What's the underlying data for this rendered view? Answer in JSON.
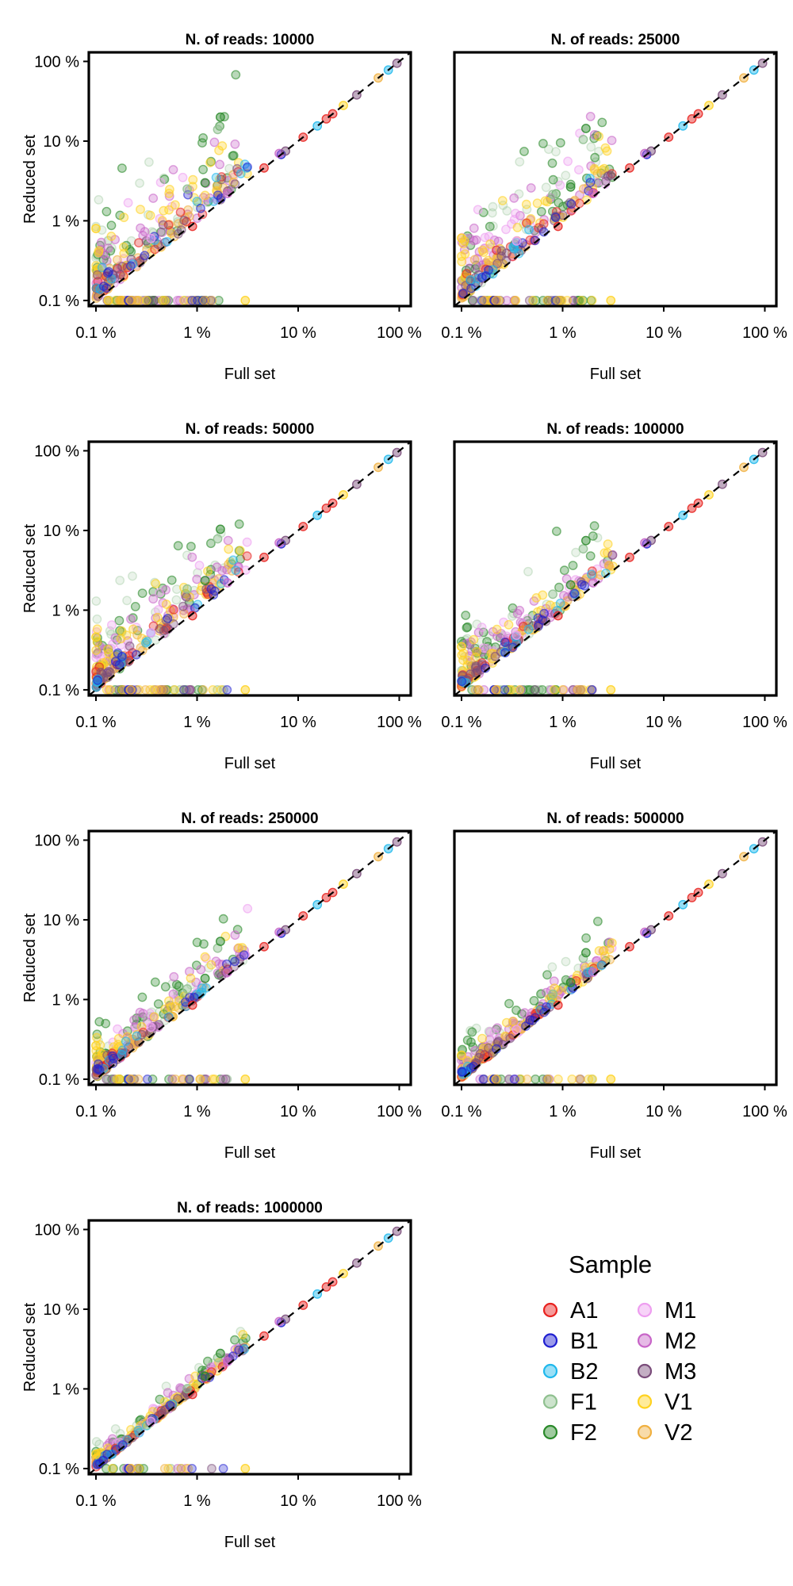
{
  "figure": {
    "legend": {
      "title": "Sample"
    }
  },
  "chart_data": [
    {
      "type": "scatter",
      "title": "N. of reads: 10000",
      "xlabel": "Full set",
      "ylabel": "Reduced set",
      "xscale": "log",
      "yscale": "log",
      "xlim": [
        0.1,
        100
      ],
      "ylim": [
        0.1,
        100
      ],
      "xticks": [
        "0.1 %",
        "1 %",
        "10 %",
        "100 %"
      ],
      "yticks": [
        "0.1 %",
        "1 %",
        "10 %",
        "100 %"
      ],
      "show_ylabel": true,
      "reference_line": "y = x (dashed)"
    },
    {
      "type": "scatter",
      "title": "N. of reads: 25000",
      "xlabel": "Full set",
      "ylabel": "",
      "xscale": "log",
      "yscale": "log",
      "xlim": [
        0.1,
        100
      ],
      "ylim": [
        0.1,
        100
      ],
      "xticks": [
        "0.1 %",
        "1 %",
        "10 %",
        "100 %"
      ],
      "yticks": [],
      "show_ylabel": false,
      "reference_line": "y = x (dashed)"
    },
    {
      "type": "scatter",
      "title": "N. of reads: 50000",
      "xlabel": "Full set",
      "ylabel": "Reduced set",
      "xscale": "log",
      "yscale": "log",
      "xlim": [
        0.1,
        100
      ],
      "ylim": [
        0.1,
        100
      ],
      "xticks": [
        "0.1 %",
        "1 %",
        "10 %",
        "100 %"
      ],
      "yticks": [
        "0.1 %",
        "1 %",
        "10 %",
        "100 %"
      ],
      "show_ylabel": true,
      "reference_line": "y = x (dashed)"
    },
    {
      "type": "scatter",
      "title": "N. of reads: 100000",
      "xlabel": "Full set",
      "ylabel": "",
      "xscale": "log",
      "yscale": "log",
      "xlim": [
        0.1,
        100
      ],
      "ylim": [
        0.1,
        100
      ],
      "xticks": [
        "0.1 %",
        "1 %",
        "10 %",
        "100 %"
      ],
      "yticks": [],
      "show_ylabel": false,
      "reference_line": "y = x (dashed)"
    },
    {
      "type": "scatter",
      "title": "N. of reads: 250000",
      "xlabel": "Full set",
      "ylabel": "Reduced set",
      "xscale": "log",
      "yscale": "log",
      "xlim": [
        0.1,
        100
      ],
      "ylim": [
        0.1,
        100
      ],
      "xticks": [
        "0.1 %",
        "1 %",
        "10 %",
        "100 %"
      ],
      "yticks": [
        "0.1 %",
        "1 %",
        "10 %",
        "100 %"
      ],
      "show_ylabel": true,
      "reference_line": "y = x (dashed)"
    },
    {
      "type": "scatter",
      "title": "N. of reads: 500000",
      "xlabel": "Full set",
      "ylabel": "",
      "xscale": "log",
      "yscale": "log",
      "xlim": [
        0.1,
        100
      ],
      "ylim": [
        0.1,
        100
      ],
      "xticks": [
        "0.1 %",
        "1 %",
        "10 %",
        "100 %"
      ],
      "yticks": [],
      "show_ylabel": false,
      "reference_line": "y = x (dashed)"
    },
    {
      "type": "scatter",
      "title": "N. of reads: 1000000",
      "xlabel": "Full set",
      "ylabel": "Reduced set",
      "xscale": "log",
      "yscale": "log",
      "xlim": [
        0.1,
        100
      ],
      "ylim": [
        0.1,
        100
      ],
      "xticks": [
        "0.1 %",
        "1 %",
        "10 %",
        "100 %"
      ],
      "yticks": [
        "0.1 %",
        "1 %",
        "10 %",
        "100 %"
      ],
      "show_ylabel": true,
      "reference_line": "y = x (dashed)"
    }
  ],
  "series": [
    {
      "name": "A1",
      "color": "#e8221f",
      "highlights": [
        {
          "full": 4.6,
          "reduced": 4.6
        },
        {
          "full": 11.2,
          "reduced": 11.2
        },
        {
          "full": 19.0,
          "reduced": 19.0
        },
        {
          "full": 22.0,
          "reduced": 22.0
        },
        {
          "full": 0.9,
          "reduced": 0.85
        }
      ]
    },
    {
      "name": "B1",
      "color": "#1f1fd0",
      "highlights": [
        {
          "full": 6.8,
          "reduced": 6.8
        },
        {
          "full": 0.21,
          "reduced": 0.1
        }
      ]
    },
    {
      "name": "B2",
      "color": "#1fb8ec",
      "highlights": [
        {
          "full": 78.0,
          "reduced": 78.0
        },
        {
          "full": 15.5,
          "reduced": 15.5
        }
      ]
    },
    {
      "name": "F1",
      "color": "#8fc08f",
      "highlights": [
        {
          "full": 0.8,
          "reduced": 2.5
        },
        {
          "full": 1.6,
          "reduced": 14.0
        }
      ]
    },
    {
      "name": "F2",
      "color": "#2a8a2a",
      "highlights": [
        {
          "full": 1.2,
          "reduced": 3.0
        },
        {
          "full": 1.7,
          "reduced": 20.0
        }
      ]
    },
    {
      "name": "M1",
      "color": "#ee9ef0",
      "highlights": [
        {
          "full": 0.35,
          "reduced": 0.6
        }
      ]
    },
    {
      "name": "M2",
      "color": "#c865c8",
      "highlights": [
        {
          "full": 6.5,
          "reduced": 7.0
        },
        {
          "full": 2.0,
          "reduced": 2.2
        }
      ]
    },
    {
      "name": "M3",
      "color": "#7a4c7a",
      "highlights": [
        {
          "full": 38.0,
          "reduced": 38.0
        },
        {
          "full": 7.5,
          "reduced": 7.5
        },
        {
          "full": 95.0,
          "reduced": 95.0
        }
      ]
    },
    {
      "name": "V1",
      "color": "#ffd21f",
      "highlights": [
        {
          "full": 3.0,
          "reduced": 0.1
        },
        {
          "full": 0.1,
          "reduced": 0.8
        },
        {
          "full": 28.0,
          "reduced": 28.0
        }
      ]
    },
    {
      "name": "V2",
      "color": "#f0b040",
      "highlights": [
        {
          "full": 62.0,
          "reduced": 62.0
        },
        {
          "full": 0.22,
          "reduced": 0.1
        }
      ]
    }
  ]
}
